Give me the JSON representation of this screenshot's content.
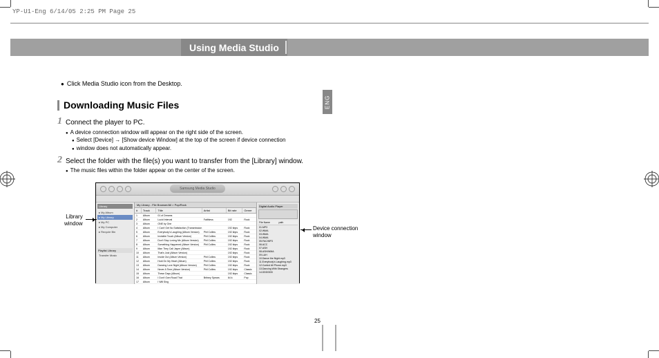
{
  "header_line": "YP-U1-Eng  6/14/05 2:25 PM  Page 25",
  "banner_title": "Using Media Studio",
  "intro_bullet": "Click Media Studio icon from the Desktop.",
  "section_title": "Downloading Music Files",
  "step1": {
    "num": "1",
    "text": "Connect the player to PC.",
    "sub1": "A device connection window will appear on the right side of the screen.",
    "sub2": "Select [Device] → [Show device Window] at the top of the screen if device connection",
    "sub3": "window does not automatically appear."
  },
  "step2": {
    "num": "2",
    "text": "Select the folder with the file(s) you want to transfer from the [Library] window.",
    "sub1": "The music files within the folder appear on the center of the screen."
  },
  "labels": {
    "library": "Library",
    "library2": "window",
    "device": "Device connection",
    "device2": "window"
  },
  "lang_tab": "ENG",
  "page_num": "25",
  "screenshot": {
    "brand": "Samsung Media Studio",
    "lib_header": "Library",
    "lib_items": [
      "My Album",
      "My Library",
      "My PC",
      "My Computer",
      "Recycle Bin"
    ],
    "lib_bottom": "Playlist Library",
    "transfer": "Transfer Music",
    "main_header": "My Library - File Browser/All > Pop/Rock",
    "cols": [
      "#",
      "Track",
      "Title",
      "Artist",
      "Bit rate",
      "Genre"
    ],
    "rows": [
      [
        "1",
        "Album",
        "01 of Dreams",
        "",
        "",
        ""
      ],
      [
        "2",
        "Album",
        "Lucid Interval",
        "Faithless",
        "192",
        "Rock"
      ],
      [
        "3",
        "Album",
        "ONE by One",
        "",
        "",
        ""
      ],
      [
        "4",
        "Album",
        "I Can't Get No Satisfaction (Transmission 1)",
        "",
        "192 kbps",
        "Rock"
      ],
      [
        "5",
        "Album",
        "Everybody's Laughing (Album Version)",
        "Phil Collins",
        "192 kbps",
        "Rock"
      ],
      [
        "6",
        "Album",
        "Invisible Touch (Album Version)",
        "Phil Collins",
        "192 kbps",
        "Rock"
      ],
      [
        "7",
        "Album",
        "Don't Stop Loving Me (Album Version)",
        "Phil Collins",
        "192 kbps",
        "Rock"
      ],
      [
        "8",
        "Album",
        "Something Happened (Album Version)",
        "Phil Collins",
        "192 kbps",
        "Rock"
      ],
      [
        "9",
        "Album",
        "Man They Call Jayne (Album)",
        "",
        "192 kbps",
        "Rock"
      ],
      [
        "10",
        "Album",
        "That's Just (Album Version)",
        "",
        "192 kbps",
        "Rock"
      ],
      [
        "11",
        "Album",
        "Inside Out (Album Version)",
        "Phil Collins",
        "192 kbps",
        "Rock"
      ],
      [
        "12",
        "Album",
        "Hold On My Heart (Album)",
        "Phil Collins",
        "192 kbps",
        "Rock"
      ],
      [
        "13",
        "Album",
        "Dancing Love Night (Album Version)",
        "Phil Collins",
        "192 kbps",
        "Rock"
      ],
      [
        "14",
        "Album",
        "Never A Time (Album Version)",
        "Phil Collins",
        "192 kbps",
        "Classic"
      ],
      [
        "15",
        "Album",
        "These Days (Album)",
        "",
        "192 kbps",
        "Classic"
      ],
      [
        "16",
        "Album",
        "I Don't Own Road That",
        "Britney Spears",
        "64 k",
        "Pop"
      ],
      [
        "17",
        "Album",
        "I Will Sing",
        "",
        "",
        ""
      ]
    ],
    "dev_header": "Digital Audio Player",
    "dev_cols": [
      "File Name",
      "path"
    ],
    "dev_items": [
      "01.MP3",
      "02.WMA",
      "03.WMA",
      "04.WMA",
      "05.FAC/MP3",
      "06.ACC",
      "07.ASH",
      "08.ASH/WMA",
      "09.LAH",
      "10.Dance the Night.mp3",
      "11.Everybody's Laughing.mp3",
      "12.Control All Phone.mp3",
      "13.Dancing With Strangers",
      "14.DDDDDD"
    ]
  },
  "colors": {
    "banner_bg": "#a0a0a0",
    "banner_title_bg": "#888888",
    "accent": "#888888",
    "text": "#000000"
  }
}
